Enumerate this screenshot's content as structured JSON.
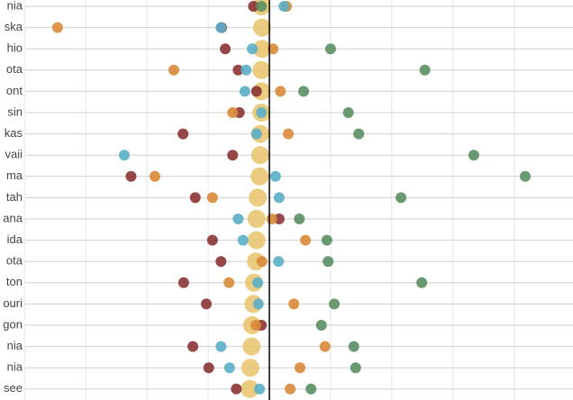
{
  "chart_data": {
    "type": "dot",
    "categories": [
      "nia",
      "ska",
      "hio",
      "ota",
      "ont",
      "sin",
      "kas",
      "vaii",
      "ma",
      "tah",
      "ana",
      "ida",
      "ota",
      "ton",
      "ouri",
      "gon",
      "nia",
      "nia",
      "see"
    ],
    "series": [
      {
        "color": "#e8c36a",
        "size": "large",
        "values": [
          -0.13,
          -0.12,
          -0.12,
          -0.13,
          -0.13,
          -0.13,
          -0.15,
          -0.15,
          -0.16,
          -0.19,
          -0.21,
          -0.21,
          -0.22,
          -0.25,
          -0.26,
          -0.28,
          -0.29,
          -0.31,
          -0.32
        ]
      },
      {
        "color": "#8b3434",
        "values": [
          -0.26,
          -0.78,
          -0.72,
          -0.51,
          -0.21,
          -0.49,
          -1.41,
          -0.6,
          -2.26,
          -1.21,
          0.16,
          -0.93,
          -0.79,
          -1.4,
          -1.03,
          -0.13,
          -1.25,
          -0.99,
          -0.54
        ]
      },
      {
        "color": "#d98a38",
        "values": [
          0.28,
          -3.46,
          0.06,
          -1.56,
          0.18,
          -0.6,
          0.31,
          null,
          -1.87,
          -0.93,
          0.04,
          0.59,
          -0.12,
          -0.66,
          0.4,
          -0.22,
          0.91,
          0.5,
          0.34
        ]
      },
      {
        "color": "#5aaec8",
        "values": [
          0.24,
          -0.79,
          -0.28,
          -0.38,
          -0.4,
          -0.13,
          -0.21,
          -2.37,
          0.1,
          0.16,
          -0.51,
          -0.43,
          0.15,
          -0.19,
          -0.18,
          null,
          -0.79,
          -0.65,
          -0.16
        ]
      },
      {
        "color": "#5a8f62",
        "values": [
          -0.13,
          null,
          1.0,
          2.54,
          0.56,
          1.29,
          1.46,
          3.34,
          4.18,
          2.15,
          0.49,
          0.94,
          0.96,
          2.49,
          1.06,
          0.85,
          1.38,
          1.41,
          0.68
        ]
      }
    ],
    "xlim": [
      -4.4,
      4.96
    ],
    "xticks": [
      -4,
      -3,
      -2,
      -1,
      0,
      1,
      2,
      3,
      4
    ],
    "grid": true,
    "vline": 0
  }
}
